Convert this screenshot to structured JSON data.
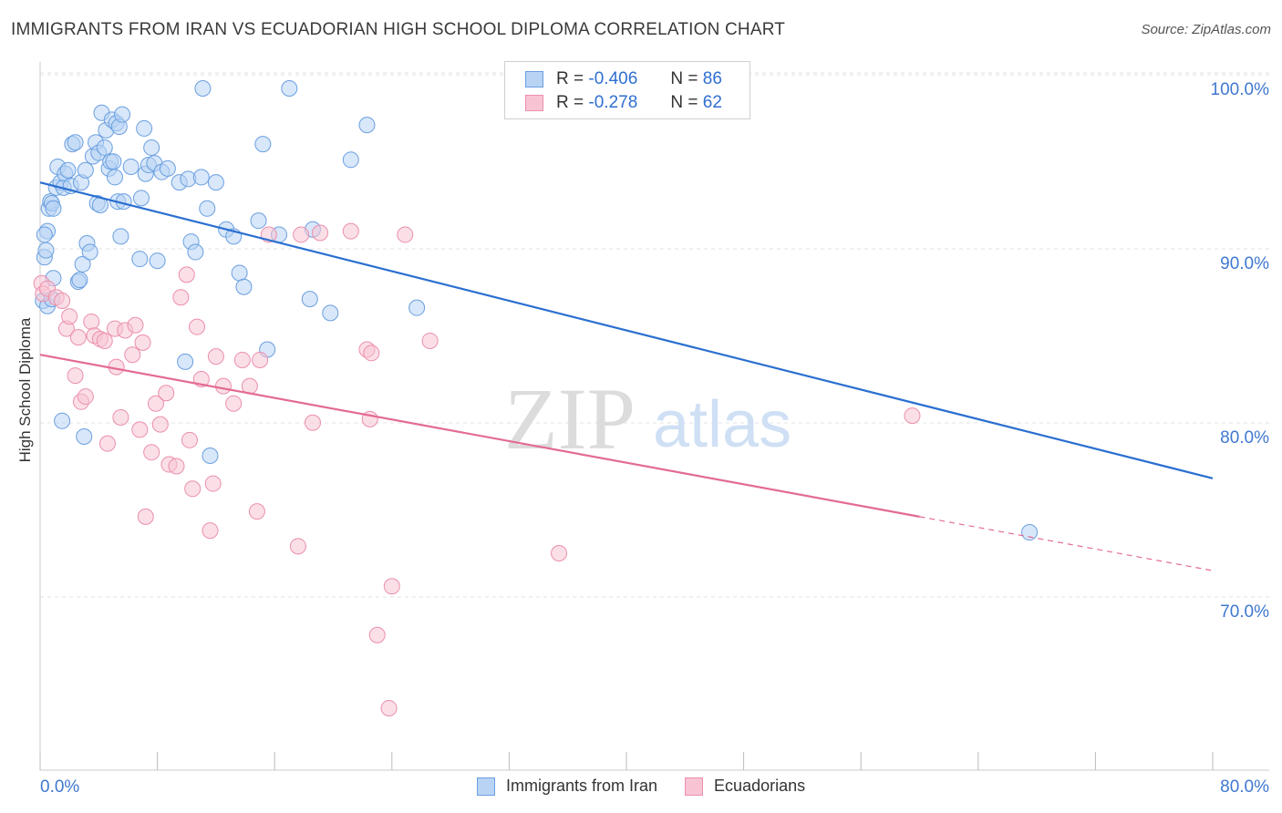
{
  "header": {
    "title": "IMMIGRANTS FROM IRAN VS ECUADORIAN HIGH SCHOOL DIPLOMA CORRELATION CHART",
    "source": "Source: ZipAtlas.com"
  },
  "legend": {
    "series": [
      {
        "r_label": "R =",
        "r_value": "-0.406",
        "n_label": "N =",
        "n_value": "86"
      },
      {
        "r_label": "R =",
        "r_value": "-0.278",
        "n_label": "N =",
        "n_value": "62"
      }
    ]
  },
  "bottom_legend": {
    "items": [
      "Immigrants from Iran",
      "Ecuadorians"
    ]
  },
  "watermark": {
    "zip": "ZIP",
    "atlas": "atlas"
  },
  "colors": {
    "blue_fill": "#b8d3f4",
    "blue_stroke": "#6a9fe0",
    "blue_line": "#2a6fd0",
    "pink_fill": "#f8c4d4",
    "pink_stroke": "#eb8fac",
    "pink_line": "#e36b93",
    "tick_label": "#3f78d0",
    "grid": "#e3e3e3"
  },
  "chart_data": {
    "type": "scatter",
    "title": "IMMIGRANTS FROM IRAN VS ECUADORIAN HIGH SCHOOL DIPLOMA CORRELATION CHART",
    "xlabel": "",
    "ylabel": "High School Diploma",
    "xlim": [
      0,
      80
    ],
    "ylim": [
      62,
      103.5
    ],
    "x_tick_labels": [
      "0.0%",
      "80.0%"
    ],
    "y_ticks": [
      70,
      80,
      90,
      100
    ],
    "y_tick_labels": [
      "70.0%",
      "80.0%",
      "90.0%",
      "100.0%"
    ],
    "grid": true,
    "series": [
      {
        "name": "Immigrants from Iran",
        "color": "blue",
        "trend": {
          "x": [
            0,
            80
          ],
          "y": [
            94.6,
            77.6
          ]
        },
        "points": [
          [
            0.2,
            87.8
          ],
          [
            0.3,
            90.3
          ],
          [
            0.4,
            90.7
          ],
          [
            0.5,
            91.8
          ],
          [
            0.6,
            93.1
          ],
          [
            0.7,
            93.5
          ],
          [
            0.8,
            93.4
          ],
          [
            0.9,
            93.1
          ],
          [
            1.1,
            94.3
          ],
          [
            1.2,
            95.5
          ],
          [
            1.4,
            94.6
          ],
          [
            1.6,
            94.3
          ],
          [
            1.7,
            95.1
          ],
          [
            1.9,
            95.3
          ],
          [
            2.1,
            94.4
          ],
          [
            2.2,
            96.8
          ],
          [
            2.4,
            96.9
          ],
          [
            2.6,
            88.9
          ],
          [
            2.8,
            94.6
          ],
          [
            2.9,
            89.9
          ],
          [
            3.1,
            95.3
          ],
          [
            3.2,
            91.1
          ],
          [
            3.4,
            90.6
          ],
          [
            3.6,
            96.1
          ],
          [
            3.8,
            96.9
          ],
          [
            3.9,
            93.4
          ],
          [
            4.0,
            96.3
          ],
          [
            4.1,
            93.3
          ],
          [
            4.2,
            98.6
          ],
          [
            4.4,
            96.6
          ],
          [
            4.5,
            97.6
          ],
          [
            4.7,
            95.4
          ],
          [
            4.8,
            95.8
          ],
          [
            4.9,
            98.2
          ],
          [
            5.0,
            95.8
          ],
          [
            5.1,
            94.9
          ],
          [
            5.2,
            98.0
          ],
          [
            5.3,
            93.5
          ],
          [
            5.4,
            97.8
          ],
          [
            5.5,
            91.5
          ],
          [
            5.6,
            98.5
          ],
          [
            5.7,
            93.5
          ],
          [
            6.2,
            95.5
          ],
          [
            6.9,
            93.7
          ],
          [
            7.1,
            97.7
          ],
          [
            7.2,
            95.1
          ],
          [
            7.4,
            95.6
          ],
          [
            7.6,
            96.6
          ],
          [
            7.8,
            95.7
          ],
          [
            8.0,
            90.1
          ],
          [
            8.3,
            95.2
          ],
          [
            8.7,
            95.4
          ],
          [
            9.5,
            94.6
          ],
          [
            9.9,
            84.3
          ],
          [
            10.1,
            94.8
          ],
          [
            10.3,
            91.2
          ],
          [
            10.6,
            90.6
          ],
          [
            11.0,
            94.9
          ],
          [
            11.1,
            100.0
          ],
          [
            11.4,
            93.1
          ],
          [
            11.6,
            78.9
          ],
          [
            12.0,
            94.6
          ],
          [
            12.7,
            91.9
          ],
          [
            13.2,
            91.5
          ],
          [
            13.6,
            89.4
          ],
          [
            13.9,
            88.6
          ],
          [
            14.9,
            92.4
          ],
          [
            15.2,
            96.8
          ],
          [
            15.5,
            85.0
          ],
          [
            16.3,
            91.6
          ],
          [
            17.0,
            100.0
          ],
          [
            18.4,
            87.9
          ],
          [
            18.6,
            91.9
          ],
          [
            19.8,
            87.1
          ],
          [
            21.2,
            95.9
          ],
          [
            22.3,
            97.9
          ],
          [
            25.7,
            87.4
          ],
          [
            67.5,
            74.5
          ],
          [
            0.5,
            87.5
          ],
          [
            0.8,
            87.9
          ],
          [
            0.9,
            89.1
          ],
          [
            1.5,
            80.9
          ],
          [
            3.0,
            80.0
          ],
          [
            2.7,
            89.0
          ],
          [
            6.8,
            90.2
          ],
          [
            0.3,
            91.6
          ]
        ]
      },
      {
        "name": "Ecuadorians",
        "color": "pink",
        "trend": {
          "x": [
            0,
            60
          ],
          "y": [
            84.7,
            75.4
          ]
        },
        "trend_dashed": {
          "x": [
            60,
            80
          ],
          "y": [
            75.4,
            72.3
          ]
        },
        "points": [
          [
            0.1,
            88.8
          ],
          [
            0.2,
            88.2
          ],
          [
            0.5,
            88.5
          ],
          [
            1.1,
            88.0
          ],
          [
            1.5,
            87.8
          ],
          [
            1.8,
            86.2
          ],
          [
            2.0,
            86.9
          ],
          [
            2.4,
            83.5
          ],
          [
            2.6,
            85.7
          ],
          [
            2.8,
            82.0
          ],
          [
            3.1,
            82.3
          ],
          [
            3.5,
            86.6
          ],
          [
            3.7,
            85.8
          ],
          [
            4.1,
            85.6
          ],
          [
            4.4,
            85.5
          ],
          [
            4.6,
            79.6
          ],
          [
            5.1,
            86.2
          ],
          [
            5.2,
            84.0
          ],
          [
            5.5,
            81.1
          ],
          [
            5.8,
            86.1
          ],
          [
            6.3,
            84.7
          ],
          [
            6.5,
            86.4
          ],
          [
            6.8,
            80.4
          ],
          [
            7.0,
            85.4
          ],
          [
            7.2,
            75.4
          ],
          [
            7.6,
            79.1
          ],
          [
            7.9,
            81.9
          ],
          [
            8.2,
            80.7
          ],
          [
            8.6,
            82.5
          ],
          [
            8.8,
            78.4
          ],
          [
            9.3,
            78.3
          ],
          [
            9.6,
            88.0
          ],
          [
            10.0,
            89.3
          ],
          [
            10.2,
            79.8
          ],
          [
            10.4,
            77.0
          ],
          [
            10.7,
            86.3
          ],
          [
            11.0,
            83.3
          ],
          [
            11.6,
            74.6
          ],
          [
            11.8,
            77.3
          ],
          [
            12.0,
            84.6
          ],
          [
            12.5,
            82.9
          ],
          [
            13.2,
            81.9
          ],
          [
            13.8,
            84.4
          ],
          [
            14.3,
            82.9
          ],
          [
            14.8,
            75.7
          ],
          [
            15.0,
            84.4
          ],
          [
            15.6,
            91.6
          ],
          [
            17.6,
            73.7
          ],
          [
            17.8,
            91.6
          ],
          [
            18.6,
            80.8
          ],
          [
            19.1,
            91.7
          ],
          [
            21.2,
            91.8
          ],
          [
            22.3,
            85.0
          ],
          [
            22.5,
            81.0
          ],
          [
            22.6,
            84.8
          ],
          [
            23.0,
            68.6
          ],
          [
            23.8,
            64.4
          ],
          [
            24.0,
            71.4
          ],
          [
            24.9,
            91.6
          ],
          [
            26.6,
            85.5
          ],
          [
            35.4,
            73.3
          ],
          [
            59.5,
            81.2
          ]
        ]
      }
    ]
  }
}
